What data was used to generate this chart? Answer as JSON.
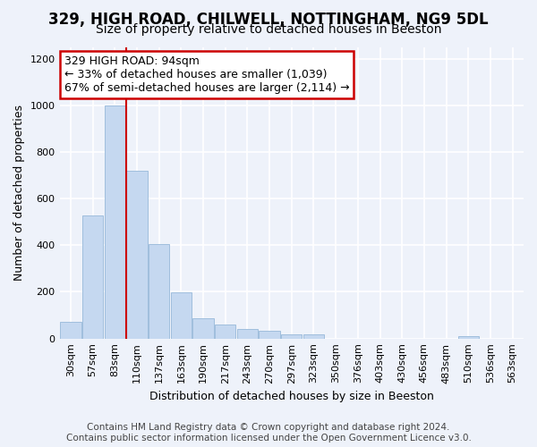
{
  "title1": "329, HIGH ROAD, CHILWELL, NOTTINGHAM, NG9 5DL",
  "title2": "Size of property relative to detached houses in Beeston",
  "xlabel": "Distribution of detached houses by size in Beeston",
  "ylabel": "Number of detached properties",
  "footer1": "Contains HM Land Registry data © Crown copyright and database right 2024.",
  "footer2": "Contains public sector information licensed under the Open Government Licence v3.0.",
  "categories": [
    "30sqm",
    "57sqm",
    "83sqm",
    "110sqm",
    "137sqm",
    "163sqm",
    "190sqm",
    "217sqm",
    "243sqm",
    "270sqm",
    "297sqm",
    "323sqm",
    "350sqm",
    "376sqm",
    "403sqm",
    "430sqm",
    "456sqm",
    "483sqm",
    "510sqm",
    "536sqm",
    "563sqm"
  ],
  "values": [
    70,
    527,
    1000,
    720,
    405,
    198,
    88,
    60,
    40,
    32,
    18,
    18,
    0,
    0,
    0,
    0,
    0,
    0,
    12,
    0,
    0
  ],
  "bar_color": "#c5d8f0",
  "bar_edge_color": "#a0bedd",
  "property_line_x": 2.5,
  "annotation_title": "329 HIGH ROAD: 94sqm",
  "annotation_line1": "← 33% of detached houses are smaller (1,039)",
  "annotation_line2": "67% of semi-detached houses are larger (2,114) →",
  "annotation_box_color": "#ffffff",
  "annotation_box_edge": "#cc0000",
  "property_line_color": "#cc0000",
  "ylim": [
    0,
    1250
  ],
  "yticks": [
    0,
    200,
    400,
    600,
    800,
    1000,
    1200
  ],
  "background_color": "#eef2fa",
  "grid_color": "#ffffff",
  "title_fontsize": 12,
  "subtitle_fontsize": 10,
  "axis_label_fontsize": 9,
  "tick_fontsize": 8,
  "footer_fontsize": 7.5,
  "annotation_fontsize": 9
}
